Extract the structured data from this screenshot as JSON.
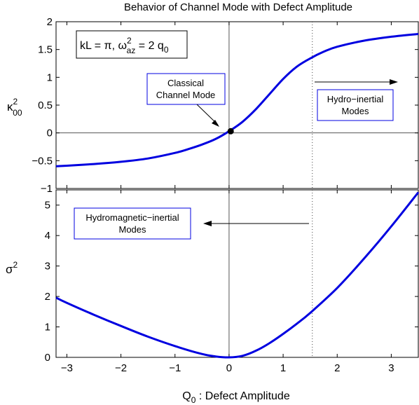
{
  "chart_data": [
    {
      "type": "line",
      "title": "Behavior of Channel Mode with Defect Amplitude",
      "ylabel": "κ²₀₀",
      "xlim": [
        -3.2,
        3.5
      ],
      "ylim": [
        -1,
        2
      ],
      "yticks": [
        "−1",
        "−0.5",
        "0",
        "0.5",
        "1",
        "1.5",
        "2"
      ],
      "yticks_values": [
        -1,
        -0.5,
        0,
        0.5,
        1,
        1.5,
        2
      ],
      "series": [
        {
          "color": "#0000e0",
          "x": [
            -3.2,
            -3.0,
            -2.5,
            -2.0,
            -1.5,
            -1.0,
            -0.75,
            -0.5,
            -0.25,
            0.0,
            0.25,
            0.5,
            0.75,
            1.0,
            1.25,
            1.5,
            1.75,
            2.0,
            2.5,
            3.0,
            3.5
          ],
          "y": [
            -0.6,
            -0.59,
            -0.56,
            -0.52,
            -0.46,
            -0.36,
            -0.29,
            -0.21,
            -0.11,
            0.03,
            0.2,
            0.43,
            0.7,
            0.97,
            1.19,
            1.34,
            1.46,
            1.55,
            1.66,
            1.73,
            1.78
          ]
        }
      ],
      "marker_point": {
        "x": 0.03,
        "y": 0.03
      },
      "dotted_vline_x": 1.54,
      "annotations": {
        "formula_box": "kL = π, ω²az = 2 q₀",
        "classical_label_line1": "Classical",
        "classical_label_line2": "Channel Mode",
        "hydro_label_line1": "Hydro−inertial",
        "hydro_label_line2": "Modes"
      }
    },
    {
      "type": "line",
      "xlabel": "Q₀ : Defect Amplitude",
      "ylabel": "σ²",
      "xlim": [
        -3.2,
        3.5
      ],
      "ylim": [
        0,
        5.5
      ],
      "xticks": [
        "−3",
        "−2",
        "−1",
        "0",
        "1",
        "2",
        "3"
      ],
      "xticks_values": [
        -3,
        -2,
        -1,
        0,
        1,
        2,
        3
      ],
      "yticks": [
        "0",
        "1",
        "2",
        "3",
        "4",
        "5"
      ],
      "yticks_values": [
        0,
        1,
        2,
        3,
        4,
        5
      ],
      "series": [
        {
          "color": "#0000e0",
          "x": [
            -3.2,
            -3.0,
            -2.5,
            -2.0,
            -1.5,
            -1.0,
            -0.5,
            -0.25,
            0.0,
            0.25,
            0.5,
            0.75,
            1.0,
            1.25,
            1.5,
            2.0,
            2.5,
            3.0,
            3.5
          ],
          "y": [
            1.96,
            1.79,
            1.4,
            1.03,
            0.68,
            0.37,
            0.11,
            0.03,
            0.0,
            0.05,
            0.22,
            0.47,
            0.77,
            1.1,
            1.46,
            2.28,
            3.25,
            4.3,
            5.42
          ]
        }
      ],
      "dotted_vline_x": 1.54,
      "annotations": {
        "hydromag_label_line1": "Hydromagnetic−inertial",
        "hydromag_label_line2": "Modes"
      }
    }
  ]
}
